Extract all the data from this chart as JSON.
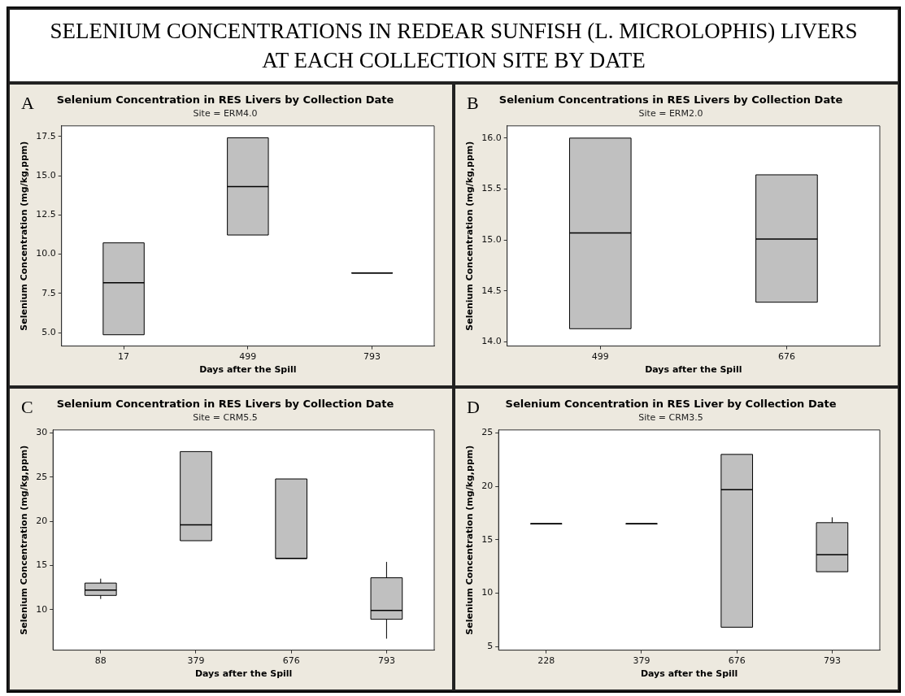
{
  "chart_data": [
    {
      "type": "other",
      "title": "SELENIUM CONCENTRATIONS IN REDEAR SUNFISH (L. MICROLOPHIS) LIVERS AT EACH COLLECTION SITE BY DATE"
    },
    {
      "type": "box",
      "title": "Selenium Concentration in RES Livers by Collection Date",
      "subtitle": "Site = ERM4.0",
      "xlabel": "Days after the Spill",
      "ylabel": "Selenium Concentration (mg/kg,ppm)",
      "annotations": [
        "A"
      ],
      "categories": [
        "17",
        "499",
        "793"
      ],
      "colors": [
        "#c0c0c0",
        "#c0c0c0",
        "#000000"
      ],
      "boxes": [
        {
          "low": 4.86,
          "q1": 4.86,
          "median": 8.17,
          "q3": 10.72,
          "high": 10.72
        },
        {
          "low": 11.22,
          "q1": 11.22,
          "median": 14.31,
          "q3": 17.42,
          "high": 17.42
        },
        {
          "low": 8.8,
          "q1": 8.8,
          "median": 8.8,
          "q3": 8.8,
          "high": 8.8
        }
      ],
      "ylim": [
        4.14,
        18.18
      ],
      "yticks": [
        {
          "value": 5,
          "label": "5.0"
        },
        7.5,
        {
          "value": 10,
          "label": "10.0"
        },
        12.5,
        {
          "value": 15,
          "label": "15.0"
        },
        17.5
      ]
    },
    {
      "type": "box",
      "title": "Selenium Concentrations in RES Livers by Collection Date",
      "subtitle": "Site = ERM2.0",
      "xlabel": "Days after the Spill",
      "ylabel": "Selenium Concentration (mg/kg,ppm)",
      "annotations": [
        "B"
      ],
      "categories": [
        "499",
        "676"
      ],
      "color": "#c0c0c0",
      "boxes": [
        {
          "low": 14.13,
          "q1": 14.13,
          "median": 15.07,
          "q3": 16.0,
          "high": 16.0
        },
        {
          "low": 14.39,
          "q1": 14.39,
          "median": 15.01,
          "q3": 15.64,
          "high": 15.64
        }
      ],
      "ylim": [
        13.96,
        16.12
      ],
      "yticks": [
        {
          "value": 14,
          "label": "14.0"
        },
        14.5,
        {
          "value": 15,
          "label": "15.0"
        },
        15.5,
        {
          "value": 16,
          "label": "16.0"
        }
      ]
    },
    {
      "type": "box",
      "title": "Selenium Concentration in RES Livers by Collection Date",
      "subtitle": "Site = CRM5.5",
      "xlabel": "Days after the Spill",
      "ylabel": "Selenium Concentration (mg/kg,ppm)",
      "annotations": [
        "C"
      ],
      "categories": [
        "88",
        "379",
        "676",
        "793"
      ],
      "color": "#c0c0c0",
      "boxes": [
        {
          "low": 11.2,
          "q1": 11.6,
          "median": 12.2,
          "q3": 13.0,
          "high": 13.5
        },
        {
          "low": 17.8,
          "q1": 17.8,
          "median": 19.6,
          "q3": 27.9,
          "high": 27.9
        },
        {
          "low": 15.8,
          "q1": 15.8,
          "median": 15.8,
          "q3": 24.8,
          "high": 24.8
        },
        {
          "low": 6.7,
          "q1": 8.9,
          "median": 9.9,
          "q3": 13.6,
          "high": 15.4
        }
      ],
      "ylim": [
        5.4,
        30.35
      ],
      "yticks": [
        10,
        15,
        20,
        25,
        30
      ]
    },
    {
      "type": "box",
      "title": "Selenium Concentration in RES Liver by Collection Date",
      "subtitle": "Site = CRM3.5",
      "xlabel": "Days after the Spill",
      "ylabel": "Selenium Concentration (mg/kg,ppm)",
      "annotations": [
        "D"
      ],
      "categories": [
        "228",
        "379",
        "676",
        "793"
      ],
      "colors": [
        "#000000",
        "#000000",
        "#c0c0c0",
        "#c0c0c0"
      ],
      "boxes": [
        {
          "low": 16.5,
          "q1": 16.5,
          "median": 16.5,
          "q3": 16.5,
          "high": 16.5
        },
        {
          "low": 16.5,
          "q1": 16.5,
          "median": 16.5,
          "q3": 16.5,
          "high": 16.5
        },
        {
          "low": 6.8,
          "q1": 6.8,
          "median": 19.7,
          "q3": 23.0,
          "high": 23.0
        },
        {
          "low": 12.0,
          "q1": 12.0,
          "median": 13.6,
          "q3": 16.6,
          "high": 17.1
        }
      ],
      "ylim": [
        4.65,
        25.29
      ],
      "yticks": [
        5,
        10,
        15,
        20,
        25
      ]
    }
  ]
}
